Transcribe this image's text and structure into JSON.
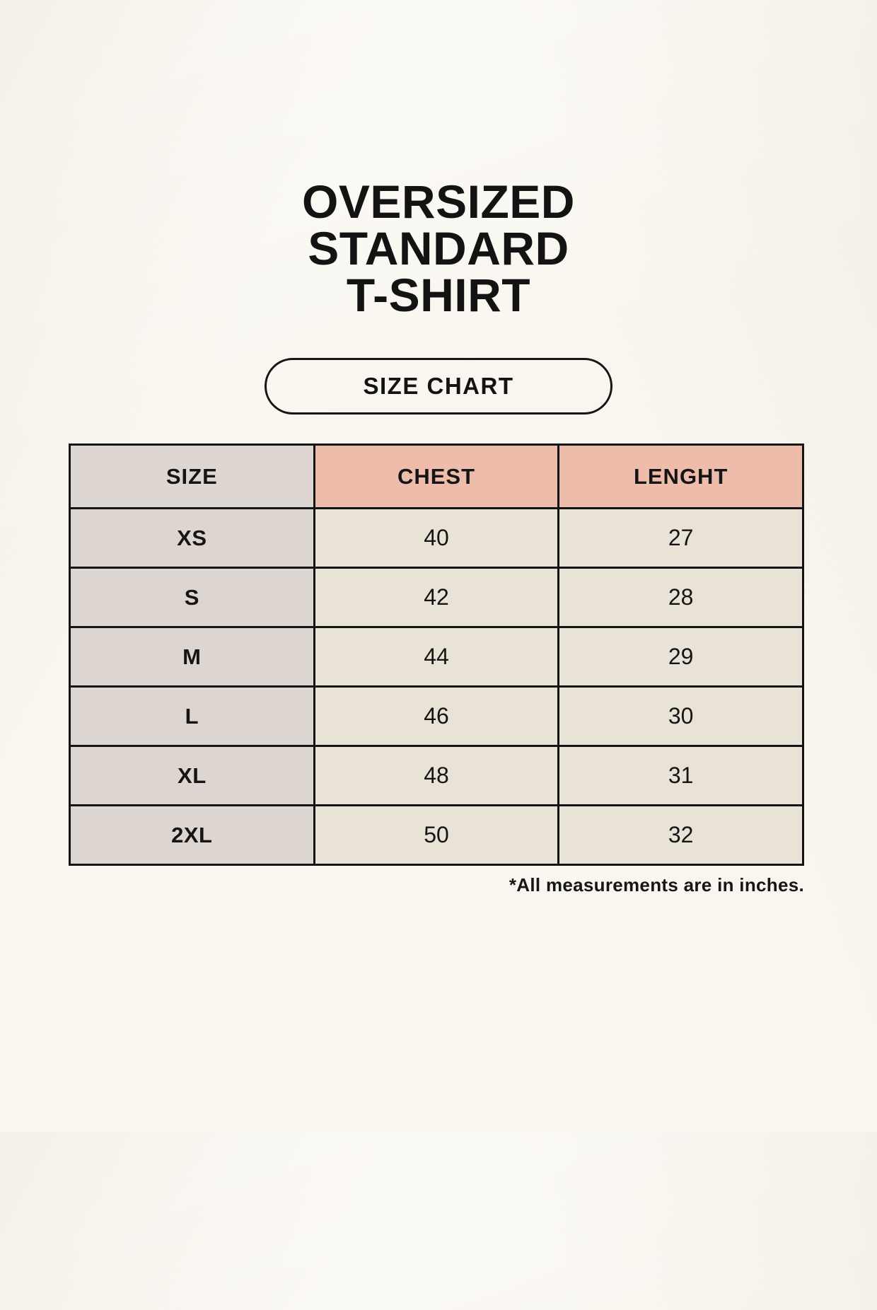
{
  "page": {
    "title_lines": [
      "OVERSIZED",
      "STANDARD",
      "T-SHIRT"
    ],
    "badge_label": "SIZE CHART",
    "footnote": "*All measurements are in inches."
  },
  "table": {
    "columns": [
      "SIZE",
      "CHEST",
      "LENGHT"
    ],
    "rows": [
      {
        "size": "XS",
        "chest": "40",
        "length": "27"
      },
      {
        "size": "S",
        "chest": "42",
        "length": "28"
      },
      {
        "size": "M",
        "chest": "44",
        "length": "29"
      },
      {
        "size": "L",
        "chest": "46",
        "length": "30"
      },
      {
        "size": "XL",
        "chest": "48",
        "length": "31"
      },
      {
        "size": "2XL",
        "chest": "50",
        "length": "32"
      }
    ]
  },
  "colors": {
    "background": "#f9f6ef",
    "header_size_bg": "#ded6d0",
    "header_measure_bg": "#eebcab",
    "row_label_bg": "#ddd5cf",
    "row_value_bg": "#e9e2d6",
    "border": "#141414",
    "text": "#151515"
  }
}
